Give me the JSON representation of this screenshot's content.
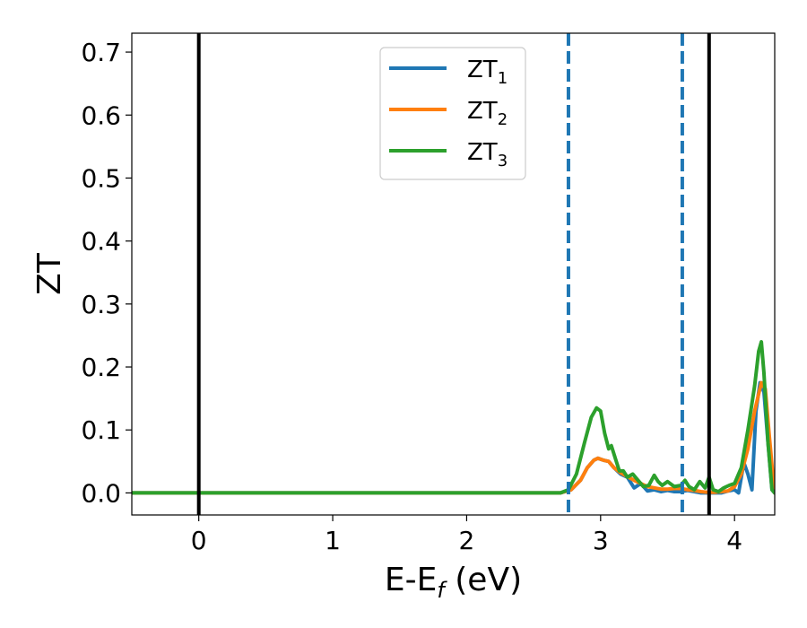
{
  "chart_data": {
    "type": "line",
    "xlabel": "E-E",
    "xlabel_sub": "f",
    "xlabel_unit": " (eV)",
    "ylabel": "ZT",
    "xlim": [
      -0.5,
      4.3
    ],
    "ylim": [
      -0.035,
      0.73
    ],
    "xticks": [
      0,
      1,
      2,
      3,
      4
    ],
    "xtick_labels": [
      "0",
      "1",
      "2",
      "3",
      "4"
    ],
    "yticks": [
      0.0,
      0.1,
      0.2,
      0.3,
      0.4,
      0.5,
      0.6,
      0.7
    ],
    "ytick_labels": [
      "0.0",
      "0.1",
      "0.2",
      "0.3",
      "0.4",
      "0.5",
      "0.6",
      "0.7"
    ],
    "grid": false,
    "legend_position": "top-center",
    "vlines": [
      {
        "x": 0.0,
        "style": "solid",
        "color": "#000000"
      },
      {
        "x": 3.81,
        "style": "solid",
        "color": "#000000"
      },
      {
        "x": 2.76,
        "style": "dashed",
        "color": "#1f77b4"
      },
      {
        "x": 3.61,
        "style": "dashed",
        "color": "#1f77b4"
      }
    ],
    "series": [
      {
        "name": "ZT",
        "name_sub": "1",
        "color": "#1f77b4",
        "x": [
          -0.5,
          2.7,
          2.78,
          2.85,
          2.9,
          2.95,
          2.98,
          3.02,
          3.06,
          3.1,
          3.15,
          3.2,
          3.25,
          3.3,
          3.35,
          3.4,
          3.45,
          3.5,
          3.55,
          3.6,
          3.65,
          3.7,
          3.75,
          3.8,
          3.85,
          3.9,
          3.95,
          4.0,
          4.03,
          4.07,
          4.1,
          4.13,
          4.16,
          4.19,
          4.22,
          4.25,
          4.28,
          4.3
        ],
        "y": [
          0.0,
          0.0,
          0.005,
          0.02,
          0.04,
          0.052,
          0.055,
          0.052,
          0.05,
          0.04,
          0.03,
          0.025,
          0.008,
          0.015,
          0.003,
          0.005,
          0.002,
          0.004,
          0.002,
          0.002,
          0.004,
          0.002,
          0.0,
          0.0,
          0.0,
          0.0,
          0.003,
          0.005,
          0.0,
          0.048,
          0.03,
          0.005,
          0.13,
          0.175,
          0.16,
          0.08,
          0.005,
          0.0
        ]
      },
      {
        "name": "ZT",
        "name_sub": "2",
        "color": "#ff7f0e",
        "x": [
          -0.5,
          2.7,
          2.78,
          2.85,
          2.9,
          2.95,
          2.98,
          3.02,
          3.06,
          3.1,
          3.15,
          3.2,
          3.25,
          3.3,
          3.35,
          3.4,
          3.45,
          3.5,
          3.55,
          3.6,
          3.65,
          3.7,
          3.75,
          3.8,
          3.85,
          3.9,
          3.95,
          4.0,
          4.05,
          4.1,
          4.15,
          4.2,
          4.23,
          4.26,
          4.29,
          4.3
        ],
        "y": [
          0.0,
          0.0,
          0.005,
          0.02,
          0.04,
          0.052,
          0.055,
          0.052,
          0.05,
          0.04,
          0.032,
          0.026,
          0.02,
          0.015,
          0.01,
          0.008,
          0.006,
          0.006,
          0.007,
          0.007,
          0.005,
          0.004,
          0.002,
          0.001,
          0.001,
          0.002,
          0.003,
          0.01,
          0.03,
          0.07,
          0.13,
          0.175,
          0.165,
          0.09,
          0.02,
          0.0
        ]
      },
      {
        "name": "ZT",
        "name_sub": "3",
        "color": "#2ca02c",
        "x": [
          -0.5,
          2.7,
          2.76,
          2.82,
          2.88,
          2.93,
          2.97,
          3.0,
          3.03,
          3.06,
          3.08,
          3.11,
          3.14,
          3.17,
          3.2,
          3.24,
          3.28,
          3.32,
          3.36,
          3.4,
          3.43,
          3.46,
          3.5,
          3.55,
          3.6,
          3.63,
          3.66,
          3.7,
          3.74,
          3.78,
          3.81,
          3.84,
          3.88,
          3.92,
          3.96,
          4.0,
          4.05,
          4.1,
          4.15,
          4.18,
          4.2,
          4.22,
          4.25,
          4.28,
          4.3
        ],
        "y": [
          0.0,
          0.0,
          0.005,
          0.03,
          0.08,
          0.12,
          0.135,
          0.13,
          0.095,
          0.07,
          0.075,
          0.055,
          0.035,
          0.035,
          0.025,
          0.03,
          0.02,
          0.01,
          0.012,
          0.028,
          0.018,
          0.012,
          0.018,
          0.01,
          0.012,
          0.02,
          0.01,
          0.005,
          0.018,
          0.008,
          0.025,
          0.005,
          0.002,
          0.008,
          0.012,
          0.015,
          0.04,
          0.1,
          0.17,
          0.225,
          0.24,
          0.19,
          0.08,
          0.005,
          0.0
        ]
      }
    ]
  }
}
